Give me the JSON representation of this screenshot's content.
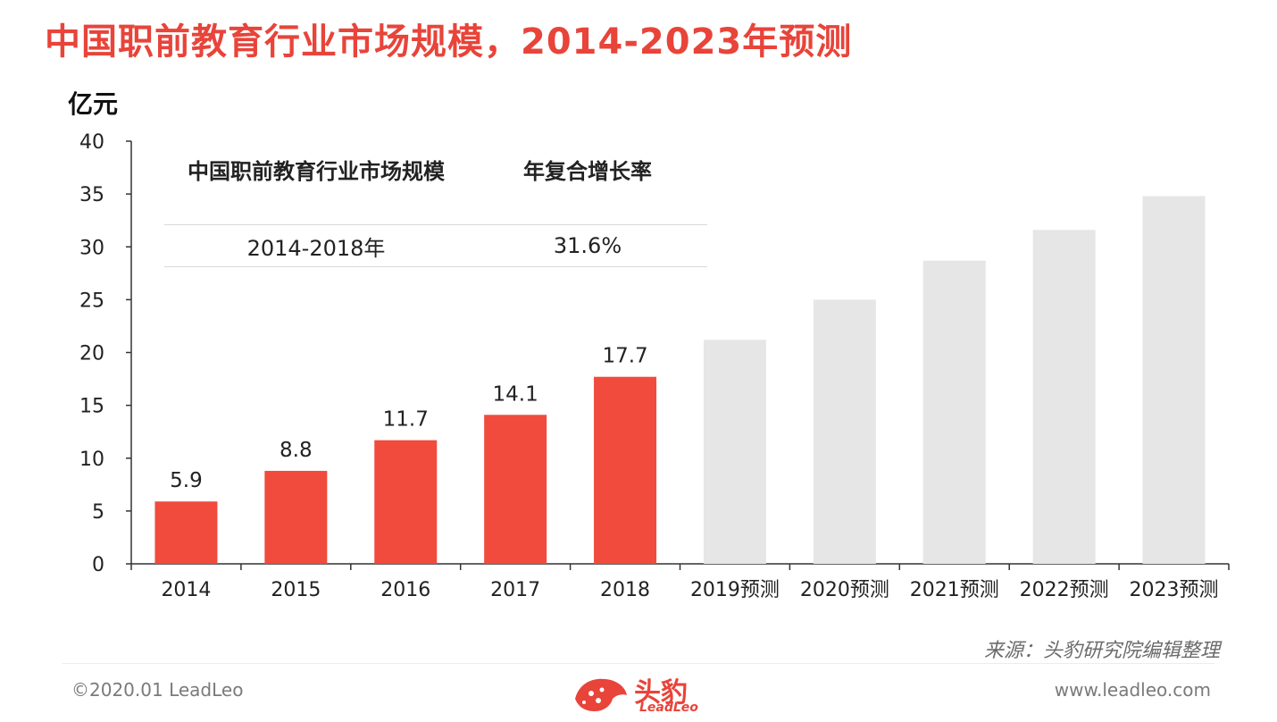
{
  "title": "中国职前教育行业市场规模，2014-2023年预测",
  "chart_data": {
    "type": "bar",
    "ylabel": "亿元",
    "ylim": [
      0,
      40
    ],
    "yticks": [
      0,
      5,
      10,
      15,
      20,
      25,
      30,
      35,
      40
    ],
    "categories": [
      "2014",
      "2015",
      "2016",
      "2017",
      "2018",
      "2019预测",
      "2020预测",
      "2021预测",
      "2022预测",
      "2023预测"
    ],
    "values": [
      5.9,
      8.8,
      11.7,
      14.1,
      17.7,
      21.2,
      25.0,
      28.7,
      31.6,
      34.8
    ],
    "data_labels": [
      "5.9",
      "8.8",
      "11.7",
      "14.1",
      "17.7",
      "",
      "",
      "",
      "",
      ""
    ],
    "bar_colors": {
      "actual": "#f04b3c",
      "forecast": "#e6e6e6"
    },
    "forecast_from_index": 5
  },
  "table": {
    "header": [
      "中国职前教育行业市场规模",
      "年复合增长率"
    ],
    "rows": [
      [
        "2014-2018年",
        "31.6%"
      ]
    ]
  },
  "source": "来源：头豹研究院编辑整理",
  "footer": {
    "copyright": "©2020.01 LeadLeo",
    "website": "www.leadleo.com",
    "logo_cn": "头豹",
    "logo_en": "LeadLeo"
  },
  "colors": {
    "accent": "#e8443a"
  }
}
